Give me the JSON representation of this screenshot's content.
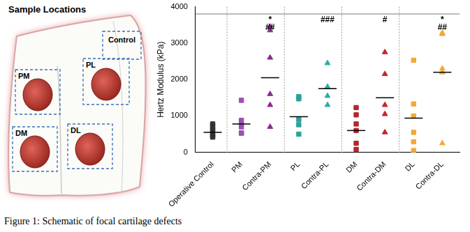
{
  "chart_data": {
    "type": "scatter",
    "y_label": "Hertz Modulus (kPa)",
    "categories": [
      "Operative Control",
      "PM",
      "Contra-PM",
      "PL",
      "Contra-PL",
      "DM",
      "Contra-DM",
      "DL",
      "Contra-DL"
    ],
    "colors": [
      "#333333",
      "#9b4fb0",
      "#8e2a91",
      "#2aa39a",
      "#26b0a3",
      "#b3262b",
      "#c4262c",
      "#f5a833",
      "#f5a833"
    ],
    "markers": [
      "square",
      "square",
      "triangle",
      "square",
      "triangle",
      "square",
      "triangle",
      "square",
      "triangle"
    ],
    "values": [
      [
        780,
        730,
        620,
        480,
        460,
        420,
        640
      ],
      [
        1430,
        880,
        770,
        700,
        530,
        530
      ],
      [
        3450,
        3350,
        2600,
        1600,
        1300,
        700
      ],
      [
        1530,
        1470,
        900,
        760,
        500
      ],
      [
        2450,
        1800,
        1550,
        1300
      ],
      [
        1230,
        1030,
        780,
        600,
        250,
        80
      ],
      [
        2750,
        2150,
        1300,
        1050,
        550
      ],
      [
        2530,
        1330,
        1000,
        550,
        290,
        50
      ],
      [
        3280,
        3250,
        2300,
        2200,
        2200,
        250
      ]
    ],
    "means": [
      550,
      780,
      2050,
      980,
      1750,
      600,
      1500,
      940,
      2200
    ],
    "significance_line": 3800,
    "annotations": [
      {
        "category": "Contra-PM",
        "lines": [
          "*",
          "##"
        ]
      },
      {
        "category": "Contra-PL",
        "lines": [
          "###"
        ]
      },
      {
        "category": "Contra-DM",
        "lines": [
          "#"
        ]
      },
      {
        "category": "Contra-DL",
        "lines": [
          "*",
          "##"
        ]
      }
    ],
    "ylim": [
      0,
      4000
    ],
    "yticks": [
      0,
      1000,
      2000,
      3000,
      4000
    ],
    "grid": false
  },
  "schematic": {
    "title": "Sample Locations",
    "regions": [
      "Control",
      "PM",
      "PL",
      "DM",
      "DL"
    ],
    "defects": [
      "PM",
      "PL",
      "DM",
      "DL"
    ]
  },
  "caption": "Figure 1: Schematic of focal cartilage defects"
}
